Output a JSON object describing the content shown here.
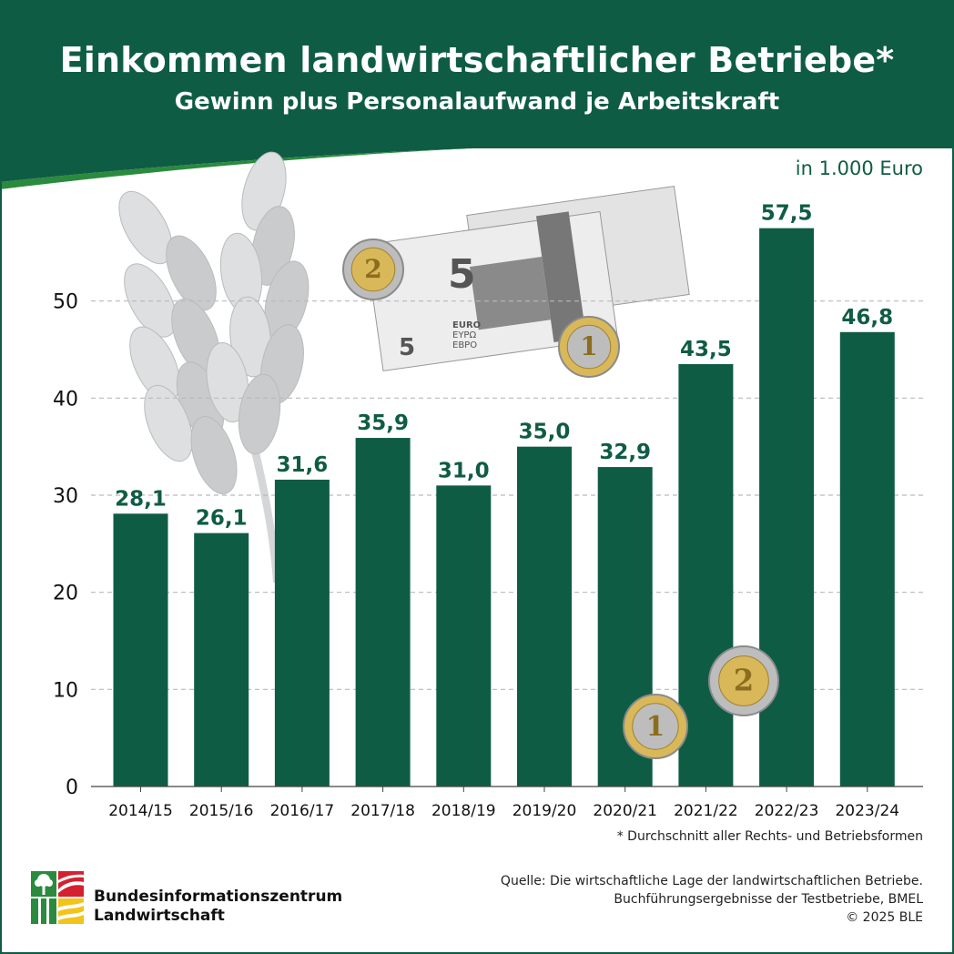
{
  "header": {
    "title": "Einkommen landwirtschaftlicher Betriebe*",
    "subtitle": "Gewinn plus Personalaufwand je Arbeitskraft"
  },
  "unit_label": "in 1.000 Euro",
  "footnote": "* Durchschnitt aller Rechts- und Betriebsformen",
  "source": {
    "line1": "Quelle: Die wirtschaftliche Lage der landwirtschaftlichen Betriebe.",
    "line2": "Buchführungsergebnisse der Testbetriebe, BMEL",
    "line3": "© 2025 BLE"
  },
  "logo": {
    "line1": "Bundesinformationszentrum",
    "line2": "Landwirtschaft"
  },
  "banknote": {
    "denomination": "5",
    "text1": "EURO",
    "text2": "ΕΥΡΩ",
    "text3": "ЕВРО"
  },
  "coins": [
    "2",
    "1",
    "1",
    "2"
  ],
  "colors": {
    "primary_green": "#0f5c45",
    "grid": "#b9b9b9",
    "wheat": "#d4d6d7",
    "coin_gold": "#d9b85a",
    "coin_silver": "#bdbdbd",
    "logo_red": "#d5202f",
    "logo_green": "#2a8a3d",
    "logo_yellow": "#f2c41a"
  },
  "chart_data": {
    "type": "bar",
    "title": "Einkommen landwirtschaftlicher Betriebe*",
    "subtitle": "Gewinn plus Personalaufwand je Arbeitskraft",
    "unit": "in 1.000 Euro",
    "categories": [
      "2014/15",
      "2015/16",
      "2016/17",
      "2017/18",
      "2018/19",
      "2019/20",
      "2020/21",
      "2021/22",
      "2022/23",
      "2023/24"
    ],
    "values": [
      28.1,
      26.1,
      31.6,
      35.9,
      31.0,
      35.0,
      32.9,
      43.5,
      57.5,
      46.8
    ],
    "value_labels": [
      "28,1",
      "26,1",
      "31,6",
      "35,9",
      "31,0",
      "35,0",
      "32,9",
      "43,5",
      "57,5",
      "46,8"
    ],
    "ylim": [
      0,
      60
    ],
    "yticks": [
      0,
      10,
      20,
      30,
      40,
      50
    ],
    "grid": true,
    "grid_style": "dashed horizontal"
  }
}
